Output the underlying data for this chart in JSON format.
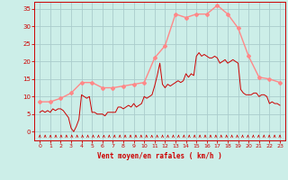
{
  "bg_color": "#cceee8",
  "grid_color": "#aacccc",
  "xlabel": "Vent moyen/en rafales ( km/h )",
  "xlabel_color": "#cc0000",
  "ylabel_color": "#cc0000",
  "yticks": [
    0,
    5,
    10,
    15,
    20,
    25,
    30,
    35
  ],
  "xticks": [
    0,
    1,
    2,
    3,
    4,
    5,
    6,
    7,
    8,
    9,
    10,
    11,
    12,
    13,
    14,
    15,
    16,
    17,
    18,
    19,
    20,
    21,
    22,
    23
  ],
  "ylim": [
    -2.5,
    37
  ],
  "xlim": [
    -0.5,
    23.5
  ],
  "line1_color": "#ff8888",
  "line2_color": "#cc0000",
  "line1_x": [
    0,
    1,
    2,
    3,
    4,
    5,
    6,
    7,
    8,
    9,
    10,
    11,
    12,
    13,
    14,
    15,
    16,
    17,
    18,
    19,
    20,
    21,
    22,
    23
  ],
  "line1_y": [
    8.5,
    8.5,
    9.5,
    11.0,
    14.0,
    14.0,
    12.5,
    12.5,
    13.0,
    13.5,
    14.0,
    21.0,
    24.5,
    33.5,
    32.5,
    33.5,
    33.5,
    36.0,
    33.5,
    29.5,
    21.5,
    15.5,
    15.0,
    14.0
  ],
  "line2_y": [
    5.5,
    6.0,
    5.5,
    6.0,
    5.5,
    6.5,
    6.0,
    6.5,
    6.5,
    6.0,
    5.0,
    4.0,
    1.0,
    0.0,
    1.5,
    3.5,
    10.5,
    10.0,
    9.5,
    10.0,
    5.5,
    5.5,
    5.0,
    5.0,
    5.0,
    4.5,
    5.5,
    5.5,
    5.5,
    5.5,
    7.0,
    7.0,
    6.5,
    7.0,
    7.5,
    7.0,
    8.0,
    7.0,
    7.5,
    8.0,
    10.0,
    9.5,
    10.0,
    10.5,
    13.0,
    16.0,
    19.5,
    13.5,
    12.5,
    13.5,
    13.0,
    13.5,
    14.0,
    14.5,
    14.0,
    14.5,
    16.5,
    15.5,
    16.5,
    16.0,
    21.5,
    22.5,
    21.5,
    22.0,
    21.5,
    21.0,
    21.0,
    21.5,
    21.0,
    19.5,
    20.0,
    20.5,
    19.5,
    20.0,
    20.5,
    20.0,
    19.5,
    12.0,
    11.0,
    10.5,
    10.5,
    10.5,
    11.0,
    11.0,
    10.0,
    10.5,
    10.5,
    10.0,
    8.0,
    8.5,
    8.0,
    8.0,
    7.5
  ],
  "arrow_texts": [
    "w",
    "w",
    "w",
    "w",
    "w",
    "w",
    "w",
    "w",
    "w",
    "w",
    "w",
    "w",
    "w",
    "w",
    "w",
    "w",
    "w",
    "w",
    "w",
    "w",
    "w",
    "w",
    "w",
    "w",
    "w",
    "w",
    "w",
    "w",
    "w",
    "w",
    "w",
    "w",
    "w",
    "w",
    "w",
    "w",
    "w",
    "w",
    "w",
    "w",
    "w",
    "w",
    "w",
    "w",
    "w",
    "w"
  ]
}
